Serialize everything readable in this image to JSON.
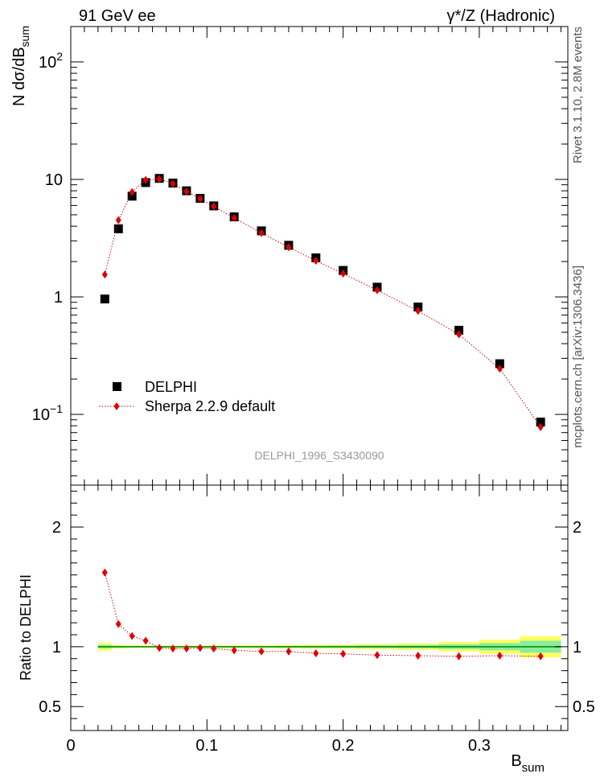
{
  "header": {
    "left": "91 GeV ee",
    "right": "γ*/Z (Hadronic)"
  },
  "side_texts": {
    "rivet": "Rivet 3.1.10, 2.8M events",
    "mcplots": "mcplots.cern.ch [arXiv:1306.3436]"
  },
  "watermark": "DELPHI_1996_S3430090",
  "chart_data": [
    {
      "type": "scatter",
      "panel": "main",
      "ylabel": "N dσ/dB_sum",
      "yscale": "log",
      "xlim": [
        0,
        0.365
      ],
      "ylim": [
        0.025,
        200
      ],
      "y_tick_labels": [
        "10⁻¹",
        "1",
        "10",
        "10²"
      ],
      "legend_position": "bottom-left",
      "series": [
        {
          "name": "DELPHI",
          "marker": "square",
          "color": "#000000",
          "x": [
            0.025,
            0.035,
            0.045,
            0.055,
            0.065,
            0.075,
            0.085,
            0.095,
            0.105,
            0.12,
            0.14,
            0.16,
            0.18,
            0.2,
            0.225,
            0.255,
            0.285,
            0.315,
            0.345
          ],
          "y": [
            0.96,
            3.8,
            7.2,
            9.4,
            10.2,
            9.3,
            8.0,
            6.9,
            5.95,
            4.8,
            3.65,
            2.75,
            2.15,
            1.68,
            1.21,
            0.82,
            0.52,
            0.27,
            0.086
          ]
        },
        {
          "name": "Sherpa 2.2.9 default",
          "marker": "diamond",
          "color": "#e00000",
          "line": "dotted",
          "x": [
            0.025,
            0.035,
            0.045,
            0.055,
            0.065,
            0.075,
            0.085,
            0.095,
            0.105,
            0.12,
            0.14,
            0.16,
            0.18,
            0.2,
            0.225,
            0.255,
            0.285,
            0.315,
            0.345
          ],
          "y": [
            1.55,
            4.5,
            7.8,
            9.9,
            10.1,
            9.2,
            7.9,
            6.85,
            5.9,
            4.7,
            3.5,
            2.65,
            2.03,
            1.58,
            1.14,
            0.76,
            0.48,
            0.245,
            0.078
          ]
        }
      ]
    },
    {
      "type": "scatter",
      "panel": "ratio",
      "ylabel": "Ratio to DELPHI",
      "xlabel": "B_sum",
      "xlim": [
        0,
        0.365
      ],
      "ylim": [
        0.3,
        2.35
      ],
      "x_tick_labels": [
        "0",
        "0.1",
        "0.2",
        "0.3"
      ],
      "y_tick_labels": [
        "0.5",
        "1",
        "2"
      ],
      "reference_line": 1,
      "uncertainty_bands": {
        "x_edges": [
          0.02,
          0.03,
          0.04,
          0.05,
          0.06,
          0.07,
          0.08,
          0.09,
          0.1,
          0.11,
          0.13,
          0.15,
          0.17,
          0.19,
          0.21,
          0.24,
          0.27,
          0.3,
          0.33,
          0.36
        ],
        "inner": [
          0.015,
          0.008,
          0.006,
          0.005,
          0.005,
          0.005,
          0.005,
          0.005,
          0.006,
          0.006,
          0.006,
          0.007,
          0.008,
          0.009,
          0.011,
          0.014,
          0.02,
          0.03,
          0.05
        ],
        "outer": [
          0.035,
          0.015,
          0.012,
          0.01,
          0.01,
          0.01,
          0.01,
          0.01,
          0.011,
          0.012,
          0.012,
          0.014,
          0.016,
          0.018,
          0.022,
          0.028,
          0.04,
          0.06,
          0.09
        ]
      },
      "series": [
        {
          "name": "Sherpa 2.2.9 default",
          "marker": "diamond",
          "color": "#e00000",
          "line": "dotted",
          "x": [
            0.025,
            0.035,
            0.045,
            0.055,
            0.065,
            0.075,
            0.085,
            0.095,
            0.105,
            0.12,
            0.14,
            0.16,
            0.18,
            0.2,
            0.225,
            0.255,
            0.285,
            0.315,
            0.345
          ],
          "y": [
            1.62,
            1.19,
            1.09,
            1.05,
            0.99,
            0.985,
            0.985,
            0.99,
            0.985,
            0.97,
            0.96,
            0.96,
            0.945,
            0.94,
            0.93,
            0.925,
            0.92,
            0.925,
            0.92
          ]
        }
      ]
    }
  ]
}
